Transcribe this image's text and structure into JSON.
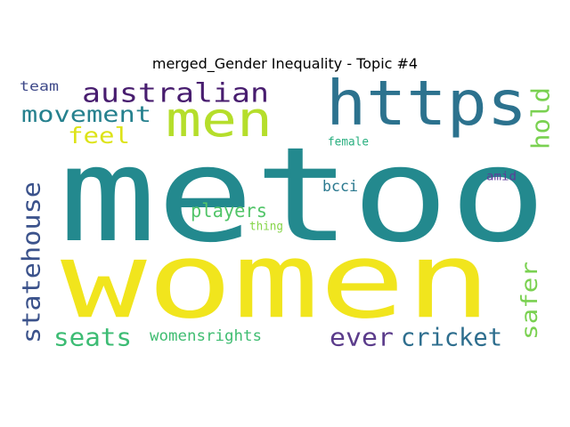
{
  "title": "merged_Gender Inequality - Topic #4",
  "words": [
    {
      "text": "metoo",
      "color": "#23898e",
      "orientation": "horizontal"
    },
    {
      "text": "women",
      "color": "#f1e51d",
      "orientation": "horizontal"
    },
    {
      "text": "https",
      "color": "#2c728e",
      "orientation": "horizontal"
    },
    {
      "text": "men",
      "color": "#b5de2b",
      "orientation": "horizontal"
    },
    {
      "text": "australian",
      "color": "#481d6f",
      "orientation": "horizontal"
    },
    {
      "text": "movement",
      "color": "#26818e",
      "orientation": "horizontal"
    },
    {
      "text": "feel",
      "color": "#dde318",
      "orientation": "horizontal"
    },
    {
      "text": "team",
      "color": "#3e4989",
      "orientation": "horizontal"
    },
    {
      "text": "hold",
      "color": "#7ad151",
      "orientation": "vertical"
    },
    {
      "text": "statehouse",
      "color": "#3b528b",
      "orientation": "vertical"
    },
    {
      "text": "players",
      "color": "#52c569",
      "orientation": "horizontal"
    },
    {
      "text": "thing",
      "color": "#86d549",
      "orientation": "horizontal"
    },
    {
      "text": "bcci",
      "color": "#2a788e",
      "orientation": "horizontal"
    },
    {
      "text": "female",
      "color": "#29af7f",
      "orientation": "horizontal"
    },
    {
      "text": "amid",
      "color": "#5e3c99",
      "orientation": "horizontal"
    },
    {
      "text": "safer",
      "color": "#7ad151",
      "orientation": "vertical"
    },
    {
      "text": "seats",
      "color": "#3dbc74",
      "orientation": "horizontal"
    },
    {
      "text": "womensrights",
      "color": "#40bd72",
      "orientation": "horizontal"
    },
    {
      "text": "ever",
      "color": "#5b3c8b",
      "orientation": "horizontal"
    },
    {
      "text": "cricket",
      "color": "#2e6e8e",
      "orientation": "horizontal"
    }
  ]
}
